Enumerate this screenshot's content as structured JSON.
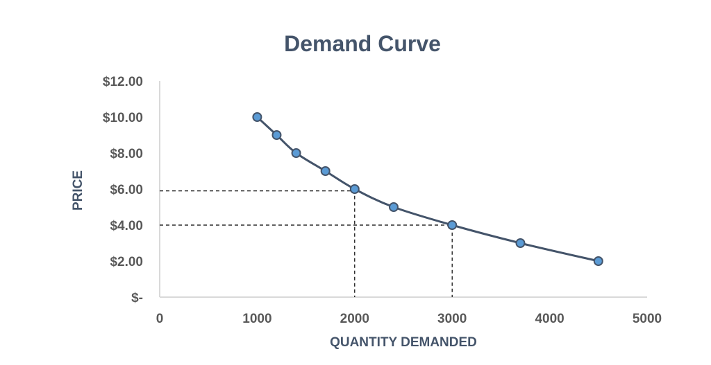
{
  "chart_data": {
    "type": "line",
    "title": "Demand Curve",
    "xlabel": "QUANTITY DEMANDED",
    "ylabel": "PRICE",
    "xlim": [
      0,
      5000
    ],
    "ylim": [
      0,
      12
    ],
    "x_ticks": [
      0,
      1000,
      2000,
      3000,
      4000,
      5000
    ],
    "x_tick_labels": [
      "0",
      "1000",
      "2000",
      "3000",
      "4000",
      "5000"
    ],
    "y_ticks": [
      0,
      2,
      4,
      6,
      8,
      10,
      12
    ],
    "y_tick_labels": [
      "$-",
      "$2.00",
      "$4.00",
      "$6.00",
      "$8.00",
      "$10.00",
      "$12.00"
    ],
    "grid": false,
    "legend": "none",
    "smooth": true,
    "series": [
      {
        "x": [
          1000,
          1200,
          1400,
          1700,
          2000,
          2400,
          3000,
          3700,
          4500
        ],
        "y": [
          10,
          9,
          8,
          7,
          6,
          5,
          4,
          3,
          2
        ],
        "line_color": "#44546a",
        "marker_color": "#5b9bd5"
      }
    ],
    "annotations": [
      {
        "type": "dashed-guide",
        "x": 2000,
        "y": 5.9
      },
      {
        "type": "dashed-guide",
        "x": 3000,
        "y": 4
      }
    ],
    "colors": {
      "title": "#44546a",
      "axis_label": "#44546a",
      "tick_label": "#595959",
      "axis_line": "#d9d9d9",
      "guide": "#000000"
    }
  }
}
